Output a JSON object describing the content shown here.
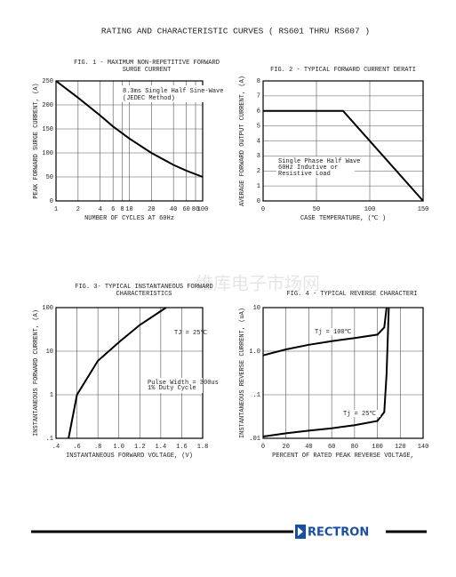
{
  "page_title": "RATING AND CHARACTERISTIC CURVES ( RS601 THRU RS607 )",
  "watermark": "维库电子市场网",
  "brand": "RECTRON",
  "chart_data": [
    {
      "type": "line",
      "title": [
        "FIG. 1 - MAXIMUM NON-REPETITIVE FORWARD",
        "SURGE CURRENT"
      ],
      "x_label": "NUMBER OF CYCLES AT 60Hz",
      "y_label": "PEAK FORWARD SURGE CURRENT, (A)",
      "annotations": [
        "8.3ms Single Half Sine-Wave",
        "(JEDEC Method)"
      ],
      "x": [
        1,
        2,
        4,
        6,
        10,
        20,
        40,
        60,
        100
      ],
      "values": [
        250,
        215,
        178,
        155,
        130,
        100,
        75,
        63,
        50
      ],
      "log_x": true,
      "xlim": [
        1,
        100
      ],
      "xticks": [
        1,
        2,
        4,
        6,
        8,
        10,
        20,
        40,
        60,
        80,
        100
      ],
      "ylim": [
        0,
        250
      ],
      "yticks": [
        0,
        50,
        100,
        150,
        200,
        250
      ],
      "grid": true,
      "color": "#000000"
    },
    {
      "type": "line",
      "title": [
        "FIG. 2 - TYPICAL FORWARD CURRENT DERATI"
      ],
      "x_label": "CASE TEMPERATURE, (℃ )",
      "y_label": "AVERAGE FORWARD OUTPUT CURRENT, (A)",
      "annotations": [
        "Single Phase Half Wave",
        "60Hz Indutive or",
        "Resistive Load"
      ],
      "x": [
        0,
        75,
        150
      ],
      "values": [
        6,
        6,
        0
      ],
      "xlim": [
        0,
        150
      ],
      "xticks": [
        0,
        50,
        100,
        150
      ],
      "ylim": [
        0,
        8
      ],
      "yticks": [
        0,
        1,
        2,
        3,
        4,
        5,
        6,
        7,
        8
      ],
      "grid": true,
      "color": "#000000"
    },
    {
      "type": "line",
      "title": [
        "FIG. 3- TYPICAL INSTANTANEOUS FORWARD",
        "CHARACTERISTICS"
      ],
      "x_label": "INSTANTANEOUS FORWARD VOLTAGE, (V)",
      "y_label": "INSTANTANEOUS FORWARD CURRENT, (A)",
      "annotations": [
        "TJ = 25℃",
        "Pulse Width = 300us",
        "1% Duty Cycle"
      ],
      "x": [
        0.52,
        0.6,
        0.8,
        1.0,
        1.2,
        1.45
      ],
      "values": [
        0.1,
        1,
        6,
        16,
        40,
        100
      ],
      "log_y": true,
      "xlim": [
        0.4,
        1.8
      ],
      "xticks": [
        {
          "value": 0.4,
          "label": ".4"
        },
        {
          "value": 0.6,
          "label": ".6"
        },
        {
          "value": 0.8,
          "label": ".8"
        },
        {
          "value": 1,
          "label": "1.0"
        },
        1.2,
        1.4,
        1.6,
        1.8
      ],
      "ylim": [
        0.1,
        100
      ],
      "yticks": [
        100,
        10,
        1,
        {
          "value": 0.1,
          "label": ".1"
        }
      ],
      "grid": true,
      "color": "#000000"
    },
    {
      "type": "line",
      "title": [
        "FIG. 4 - TYPICAL REVERSE CHARACTERI"
      ],
      "x_label": "PERCENT OF RATED PEAK REVERSE VOLTAGE,",
      "y_label": "INSTANTANEOUS REVERSE CURRENT, (uA)",
      "series": [
        {
          "name": "Tj = 100℃",
          "color": "#000000",
          "x": [
            0,
            20,
            40,
            60,
            80,
            100,
            106,
            108
          ],
          "values": [
            0.8,
            1.1,
            1.4,
            1.7,
            2.0,
            2.4,
            3.5,
            10
          ]
        },
        {
          "name": "Tj = 25℃",
          "color": "#000000",
          "x": [
            0,
            20,
            40,
            60,
            80,
            100,
            106,
            108,
            110
          ],
          "values": [
            0.011,
            0.013,
            0.015,
            0.017,
            0.02,
            0.025,
            0.04,
            0.3,
            10
          ]
        }
      ],
      "log_y": true,
      "xlim": [
        0,
        140
      ],
      "xticks": [
        0,
        20,
        40,
        60,
        80,
        100,
        120,
        140
      ],
      "ylim": [
        0.01,
        10
      ],
      "yticks": [
        10,
        {
          "value": 1,
          "label": "1.0"
        },
        {
          "value": 0.1,
          "label": ".1"
        },
        {
          "value": 0.01,
          "label": ".01"
        }
      ],
      "grid": true
    }
  ]
}
